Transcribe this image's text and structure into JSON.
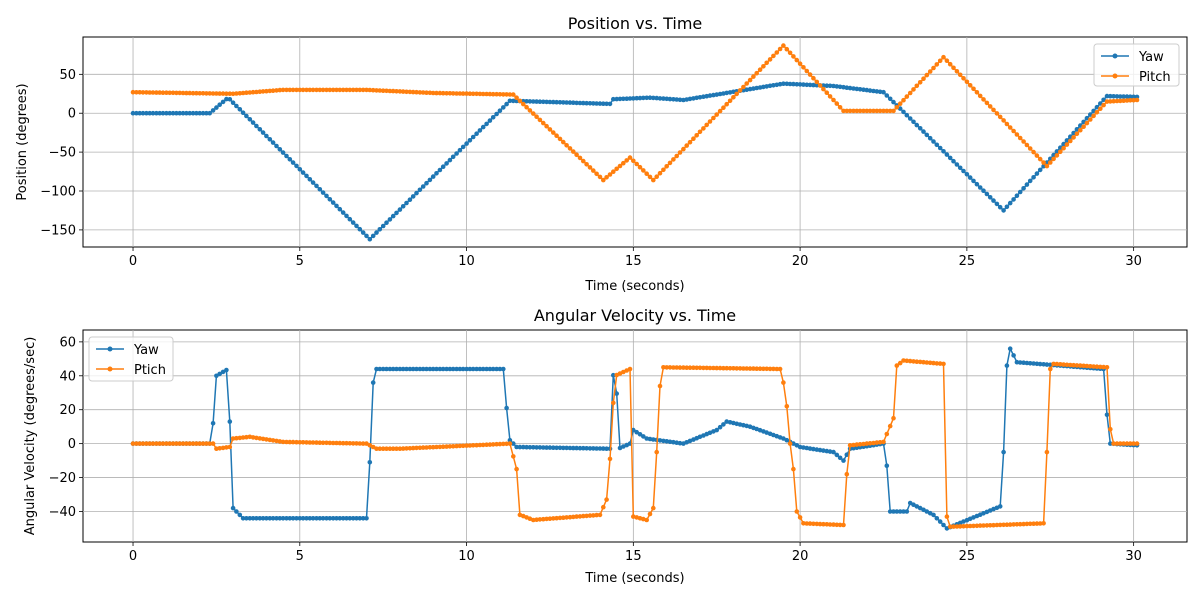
{
  "chart_data": [
    {
      "type": "line",
      "title": "Position vs. Time",
      "xlabel": "Time (seconds)",
      "ylabel": "Position (degrees)",
      "xlim": [
        -1.5,
        31.6
      ],
      "ylim": [
        -172,
        98
      ],
      "xticks": [
        0,
        5,
        10,
        15,
        20,
        25,
        30
      ],
      "yticks": [
        50,
        0,
        -50,
        -100,
        -150
      ],
      "grid": true,
      "legend": "top-right",
      "sample_step": 0.1,
      "series": [
        {
          "name": "Yaw",
          "color": "#1f77b4",
          "keyframes": [
            [
              0,
              0
            ],
            [
              2.3,
              0
            ],
            [
              2.85,
              20
            ],
            [
              7.1,
              -162
            ],
            [
              11.3,
              16
            ],
            [
              14.3,
              12
            ],
            [
              14.4,
              18
            ],
            [
              15.5,
              20
            ],
            [
              16.5,
              17
            ],
            [
              19.5,
              38
            ],
            [
              21,
              35
            ],
            [
              22.5,
              27
            ],
            [
              26.1,
              -125
            ],
            [
              29.2,
              22
            ],
            [
              30.1,
              21
            ]
          ]
        },
        {
          "name": "Pitch",
          "color": "#ff7f0e",
          "keyframes": [
            [
              0,
              27
            ],
            [
              3,
              25
            ],
            [
              4.5,
              30
            ],
            [
              7,
              30
            ],
            [
              9,
              26
            ],
            [
              11.4,
              24
            ],
            [
              14.1,
              -86
            ],
            [
              14.9,
              -57
            ],
            [
              15.6,
              -86
            ],
            [
              19.5,
              87
            ],
            [
              21.3,
              3
            ],
            [
              22.8,
              3
            ],
            [
              24.3,
              72
            ],
            [
              27.4,
              -68
            ],
            [
              29.2,
              15
            ],
            [
              30.1,
              17
            ]
          ]
        }
      ]
    },
    {
      "type": "line",
      "title": "Angular Velocity vs. Time",
      "xlabel": "Time (seconds)",
      "ylabel": "Angular Velocity (degrees/sec)",
      "xlim": [
        -1.5,
        31.6
      ],
      "ylim": [
        -58,
        67
      ],
      "xticks": [
        0,
        5,
        10,
        15,
        20,
        25,
        30
      ],
      "yticks": [
        60,
        40,
        20,
        0,
        -20,
        -40
      ],
      "grid": true,
      "legend": "top-left",
      "sample_step": 0.1,
      "series": [
        {
          "name": "Yaw",
          "color": "#1f77b4",
          "keyframes": [
            [
              0,
              0
            ],
            [
              2.3,
              0
            ],
            [
              2.4,
              12
            ],
            [
              2.5,
              40
            ],
            [
              2.85,
              44
            ],
            [
              2.9,
              13
            ],
            [
              3,
              -38
            ],
            [
              3.3,
              -44
            ],
            [
              7,
              -44
            ],
            [
              7.1,
              -11
            ],
            [
              7.2,
              36
            ],
            [
              7.3,
              44
            ],
            [
              11.1,
              44
            ],
            [
              11.2,
              21
            ],
            [
              11.3,
              2
            ],
            [
              11.5,
              -2
            ],
            [
              14.3,
              -3
            ],
            [
              14.45,
              62
            ],
            [
              14.55,
              -3
            ],
            [
              14.9,
              0
            ],
            [
              15,
              8
            ],
            [
              15.4,
              3
            ],
            [
              16.5,
              0
            ],
            [
              17.5,
              8
            ],
            [
              17.8,
              13
            ],
            [
              18.5,
              10
            ],
            [
              19.5,
              3
            ],
            [
              20,
              -2
            ],
            [
              21,
              -5
            ],
            [
              21.3,
              -10
            ],
            [
              21.5,
              -3
            ],
            [
              22.5,
              0
            ],
            [
              22.6,
              -13
            ],
            [
              22.7,
              -40
            ],
            [
              23.2,
              -40
            ],
            [
              23.3,
              -35
            ],
            [
              24,
              -42
            ],
            [
              24.4,
              -50
            ],
            [
              26,
              -37
            ],
            [
              26.1,
              -5
            ],
            [
              26.2,
              46
            ],
            [
              26.3,
              56
            ],
            [
              26.5,
              48
            ],
            [
              29.1,
              44
            ],
            [
              29.2,
              17
            ],
            [
              29.3,
              0
            ],
            [
              30.1,
              -1
            ]
          ]
        },
        {
          "name": "Ptich",
          "color": "#ff7f0e",
          "keyframes": [
            [
              0,
              0
            ],
            [
              2.4,
              0
            ],
            [
              2.5,
              -3
            ],
            [
              2.9,
              -2
            ],
            [
              3,
              3
            ],
            [
              3.5,
              4
            ],
            [
              4.5,
              1
            ],
            [
              7,
              0
            ],
            [
              7.3,
              -3
            ],
            [
              8,
              -3
            ],
            [
              11.3,
              0
            ],
            [
              11.5,
              -15
            ],
            [
              11.6,
              -42
            ],
            [
              12,
              -45
            ],
            [
              14,
              -42
            ],
            [
              14.2,
              -33
            ],
            [
              14.3,
              -9
            ],
            [
              14.4,
              24
            ],
            [
              14.45,
              40
            ],
            [
              14.9,
              44
            ],
            [
              14.95,
              3
            ],
            [
              15,
              -43
            ],
            [
              15.4,
              -45
            ],
            [
              15.6,
              -38
            ],
            [
              15.7,
              -5
            ],
            [
              15.8,
              34
            ],
            [
              15.9,
              45
            ],
            [
              19.4,
              44
            ],
            [
              19.5,
              36
            ],
            [
              19.6,
              22
            ],
            [
              19.7,
              0
            ],
            [
              19.8,
              -15
            ],
            [
              19.9,
              -40
            ],
            [
              20.1,
              -47
            ],
            [
              21.3,
              -48
            ],
            [
              21.4,
              -18
            ],
            [
              21.5,
              -1
            ],
            [
              22.5,
              1
            ],
            [
              22.8,
              15
            ],
            [
              22.9,
              46
            ],
            [
              23.1,
              49
            ],
            [
              24.3,
              47
            ],
            [
              24.35,
              8
            ],
            [
              24.4,
              -43
            ],
            [
              24.5,
              -49
            ],
            [
              27.3,
              -47
            ],
            [
              27.4,
              -5
            ],
            [
              27.5,
              44
            ],
            [
              27.6,
              47
            ],
            [
              29.2,
              45
            ],
            [
              29.25,
              17
            ],
            [
              29.35,
              0
            ],
            [
              30.1,
              0
            ]
          ]
        }
      ]
    }
  ]
}
